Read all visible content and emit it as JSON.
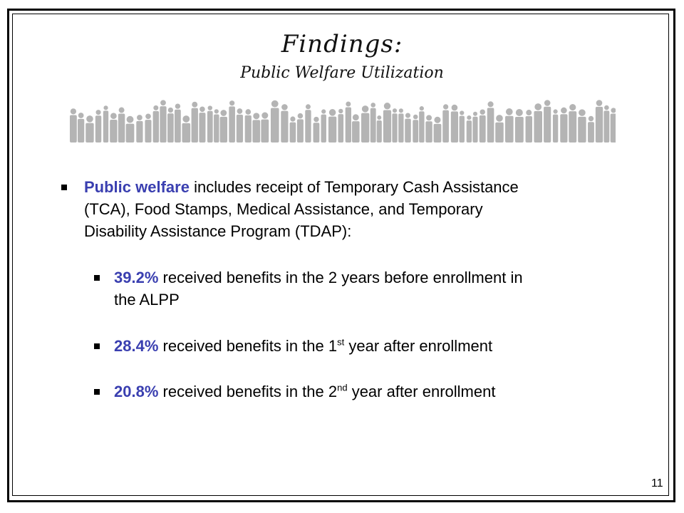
{
  "title": "Findings:",
  "subtitle": "Public Welfare Utilization",
  "main_bullet": {
    "term": "Public welfare",
    "line1_rest": " includes receipt of Temporary Cash Assistance",
    "line2": "(TCA), Food Stamps, Medical Assistance, and Temporary",
    "line3": "Disability Assistance Program (TDAP):"
  },
  "sub_bullets": [
    {
      "pct": "39.2%",
      "line1": " received benefits in the 2 years before enrollment in",
      "line2": "the ALPP"
    },
    {
      "pct": "28.4%",
      "text_before_sup": " received benefits in the 1",
      "sup": "st",
      "text_after_sup": " year after enrollment"
    },
    {
      "pct": "20.8%",
      "text_before_sup": " received benefits in the 2",
      "sup": "nd",
      "text_after_sup": " year after enrollment"
    }
  ],
  "page_number": "11",
  "colors": {
    "accent": "#3a3fb0",
    "crowd": "#b4b4b4",
    "frame": "#000000"
  },
  "decoration": "crowd-silhouette-banner"
}
